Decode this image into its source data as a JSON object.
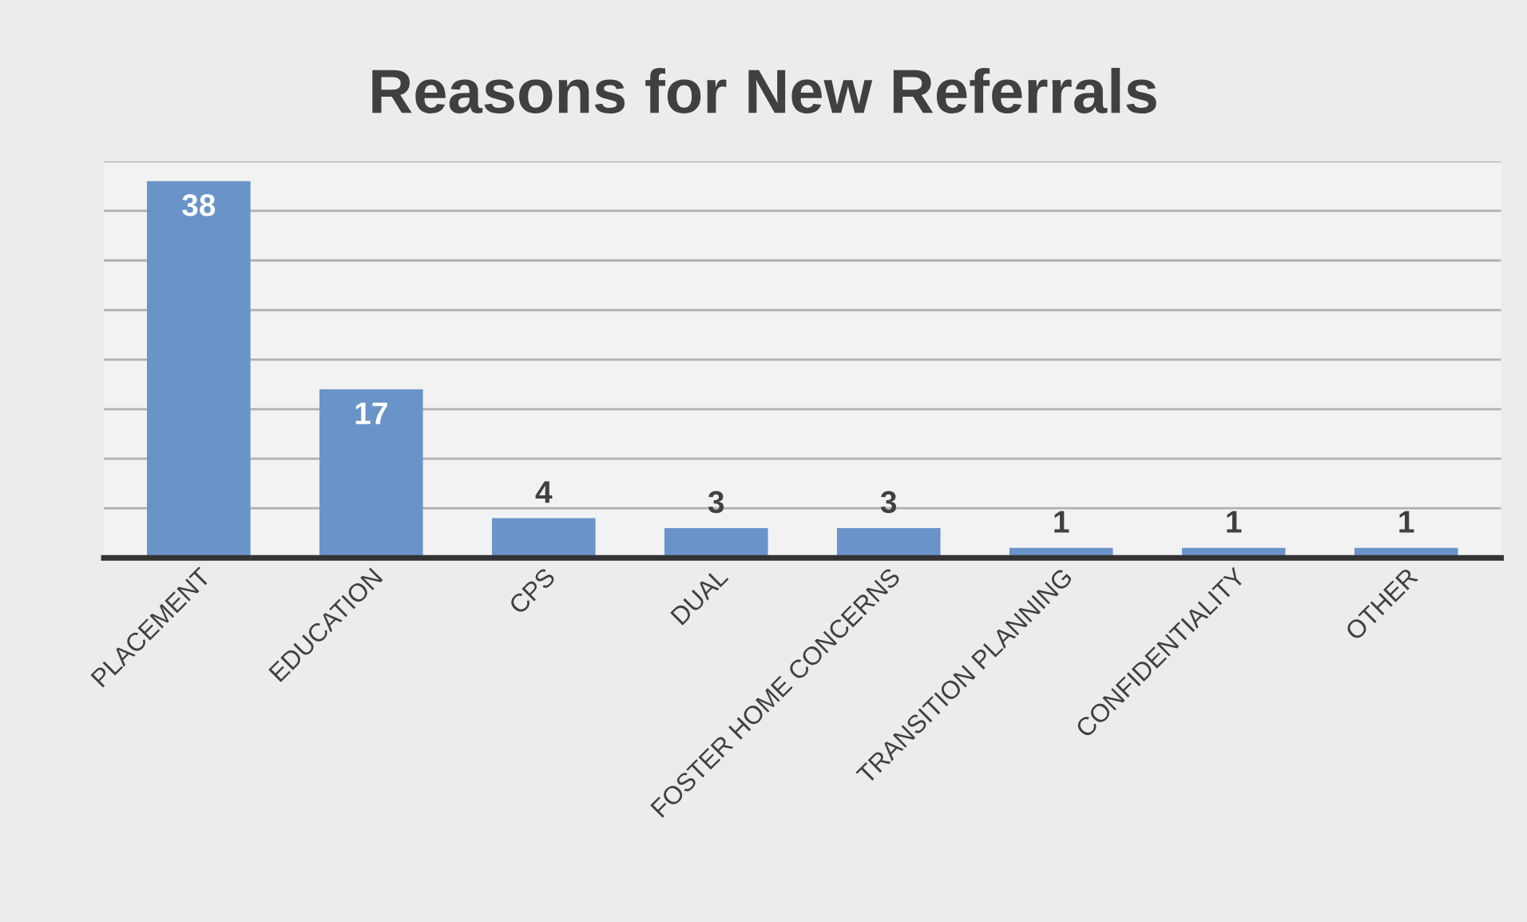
{
  "chart_data": {
    "type": "bar",
    "title": "Reasons for New Referrals",
    "categories": [
      "PLACEMENT",
      "EDUCATION",
      "CPS",
      "DUAL",
      "FOSTER HOME CONCERNS",
      "TRANSITION PLANNING",
      "CONFIDENTIALITY",
      "OTHER"
    ],
    "values": [
      38,
      17,
      4,
      3,
      3,
      1,
      1,
      1
    ],
    "color": "#6a94c9",
    "ylim": [
      0,
      40
    ],
    "yticks": [
      {
        "value": 0,
        "label": null
      },
      {
        "value": 5,
        "label": null
      },
      {
        "value": 10,
        "label": null
      },
      {
        "value": 15,
        "label": null
      },
      {
        "value": 20,
        "label": null
      },
      {
        "value": 25,
        "label": null
      },
      {
        "value": 30,
        "label": null
      },
      {
        "value": 35,
        "label": null
      },
      {
        "value": 40,
        "label": null
      }
    ],
    "tick_labels": "x",
    "grid": "y",
    "data_labels": true
  }
}
